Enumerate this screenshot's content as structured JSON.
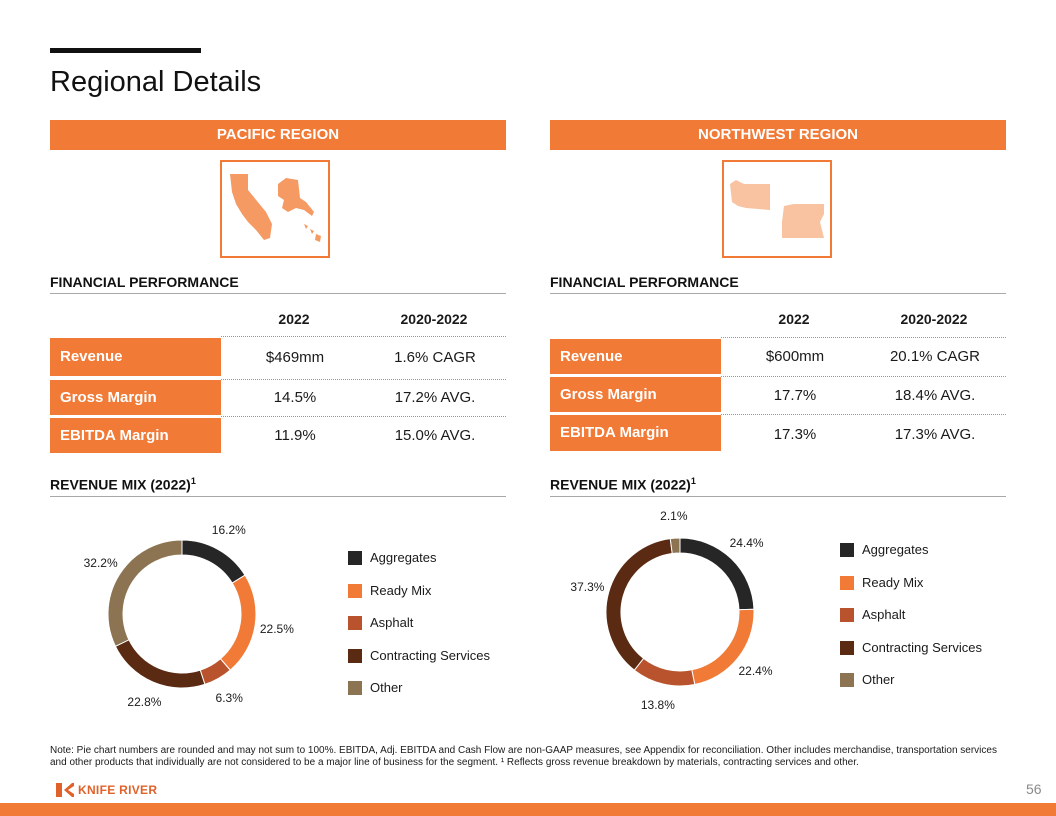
{
  "page": {
    "title": "Regional Details",
    "page_number": "56"
  },
  "colors": {
    "accent": "#f07a36",
    "aggregates": "#262626",
    "ready_mix": "#f07a36",
    "asphalt": "#b9532d",
    "contracting_services": "#5a2a12",
    "other": "#8c7351"
  },
  "regions": [
    {
      "name": "PACIFIC REGION",
      "map_icon": "pacific-states-map-icon",
      "financial_heading": "FINANCIAL PERFORMANCE",
      "col_headers": [
        "2022",
        "2020-2022"
      ],
      "rows": [
        {
          "label": "Revenue",
          "v2022": "$469mm",
          "v2020_2022": "1.6% CAGR"
        },
        {
          "label": "Gross Margin",
          "v2022": "14.5%",
          "v2020_2022": "17.2% AVG."
        },
        {
          "label": "EBITDA Margin",
          "v2022": "11.9%",
          "v2020_2022": "15.0% AVG."
        }
      ],
      "mix_heading": "REVENUE MIX (2022)",
      "mix_sup": "1"
    },
    {
      "name": "NORTHWEST REGION",
      "map_icon": "northwest-states-map-icon",
      "financial_heading": "FINANCIAL PERFORMANCE",
      "col_headers": [
        "2022",
        "2020-2022"
      ],
      "rows": [
        {
          "label": "Revenue",
          "v2022": "$600mm",
          "v2020_2022": "20.1% CAGR"
        },
        {
          "label": "Gross Margin",
          "v2022": "17.7%",
          "v2020_2022": "18.4% AVG."
        },
        {
          "label": "EBITDA Margin",
          "v2022": "17.3%",
          "v2020_2022": "17.3% AVG."
        }
      ],
      "mix_heading": "REVENUE MIX (2022)",
      "mix_sup": "1"
    }
  ],
  "chart_data": [
    {
      "type": "pie",
      "title": "",
      "categories": [
        "Aggregates",
        "Ready Mix",
        "Asphalt",
        "Contracting Services",
        "Other"
      ],
      "values": [
        16.2,
        22.5,
        6.3,
        22.8,
        32.2
      ],
      "labels": [
        "16.2%",
        "22.5%",
        "6.3%",
        "22.8%",
        "32.2%"
      ],
      "legend_position": "right"
    },
    {
      "type": "pie",
      "title": "",
      "categories": [
        "Aggregates",
        "Ready Mix",
        "Asphalt",
        "Contracting Services",
        "Other"
      ],
      "values": [
        24.4,
        22.4,
        13.8,
        37.3,
        2.1
      ],
      "labels": [
        "24.4%",
        "22.4%",
        "13.8%",
        "37.3%",
        "2.1%"
      ],
      "legend_position": "right"
    }
  ],
  "footnote": "Note: Pie chart numbers are rounded and may not sum to 100%. EBITDA,  Adj. EBITDA  and Cash Flow are non-GAAP measures, see Appendix for reconciliation. Other includes merchandise, transportation services and other products that individually are not considered to be a major line  of business for the segment. ¹ Reflects gross revenue breakdown by materials, contracting services and other.",
  "logo": {
    "text": "KNIFE RIVER",
    "icon": "knife-river-logo-icon"
  }
}
